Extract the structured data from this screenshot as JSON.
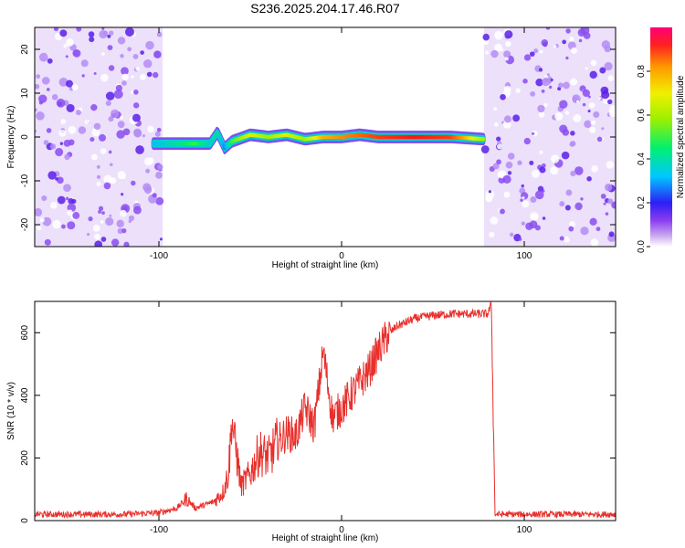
{
  "title": "S236.2025.204.17.46.R07",
  "chart_data": [
    {
      "type": "heatmap",
      "xlabel": "Height of straight line (km)",
      "ylabel": "Frequency (Hz)",
      "xlim": [
        -168,
        150
      ],
      "ylim": [
        -25,
        25
      ],
      "x_ticks": [
        -100,
        0,
        100
      ],
      "y_ticks": [
        -20,
        -10,
        0,
        10,
        20
      ],
      "noise_regions_km": [
        [
          -168,
          -98
        ],
        [
          78,
          150
        ]
      ],
      "signal_track": {
        "x": [
          -103,
          -90,
          -80,
          -72,
          -68,
          -64,
          -60,
          -50,
          -40,
          -30,
          -20,
          -10,
          0,
          10,
          20,
          40,
          60,
          78
        ],
        "freq": [
          -1.5,
          -1.5,
          -1.5,
          -1.5,
          1.0,
          -2.5,
          -1.0,
          0.5,
          0.0,
          0.5,
          -0.5,
          0.0,
          0.0,
          0.5,
          0.0,
          0.0,
          0.0,
          -0.5
        ],
        "amplitude": [
          0.3,
          0.4,
          0.5,
          0.35,
          0.4,
          0.25,
          0.5,
          0.7,
          0.6,
          0.7,
          0.6,
          0.8,
          0.85,
          0.9,
          0.95,
          1.0,
          0.95,
          0.6
        ]
      },
      "colorbar": {
        "label": "Normalized spectral amplitude",
        "ticks": [
          0.0,
          0.2,
          0.4,
          0.6,
          0.8
        ],
        "range": [
          0,
          1
        ]
      }
    },
    {
      "type": "line",
      "xlabel": "Height of straight line (km)",
      "ylabel": "SNR (10 * v/v)",
      "xlim": [
        -168,
        150
      ],
      "ylim": [
        0,
        700
      ],
      "x_ticks": [
        -100,
        0,
        100
      ],
      "y_ticks": [
        0,
        200,
        400,
        600
      ],
      "color": "#e8302c",
      "series": [
        {
          "x": [
            -168,
            -120,
            -100,
            -90,
            -85,
            -80,
            -70,
            -65,
            -62,
            -60,
            -55,
            -50,
            -45,
            -40,
            -35,
            -30,
            -25,
            -20,
            -15,
            -10,
            -5,
            0,
            5,
            10,
            15,
            20,
            25,
            30,
            40,
            50,
            60,
            70,
            80,
            82,
            84,
            90,
            120,
            150
          ],
          "y": [
            20,
            20,
            25,
            40,
            70,
            40,
            60,
            90,
            150,
            320,
            110,
            150,
            220,
            200,
            250,
            280,
            270,
            360,
            300,
            540,
            330,
            360,
            400,
            440,
            480,
            540,
            590,
            620,
            645,
            655,
            660,
            660,
            660,
            690,
            20,
            20,
            20,
            20
          ]
        }
      ]
    }
  ]
}
